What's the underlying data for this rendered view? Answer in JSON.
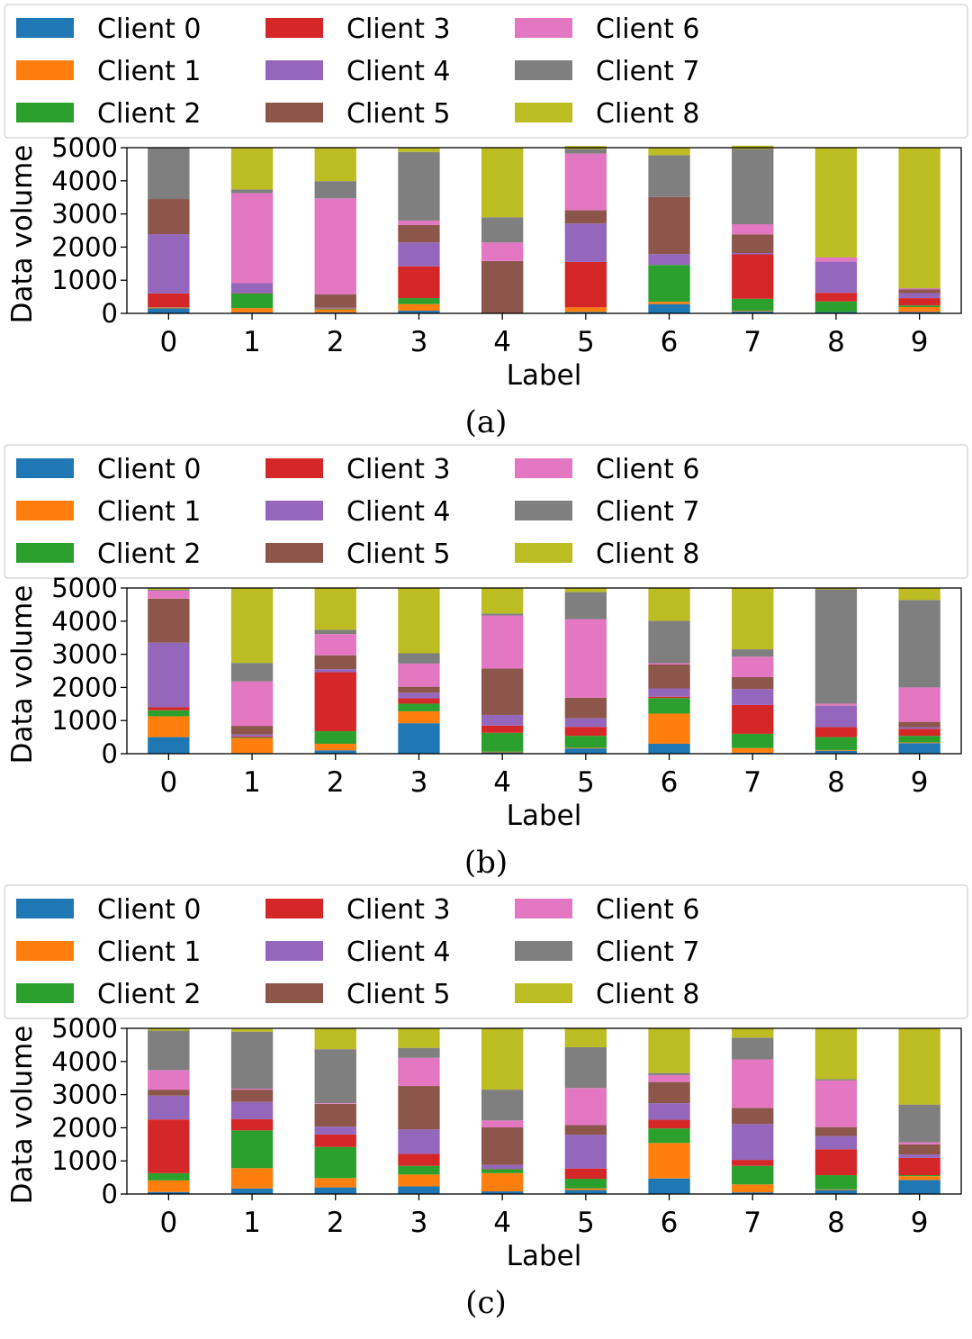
{
  "client_colors": [
    "#1f77b4",
    "#ff7f0e",
    "#2ca02c",
    "#d62728",
    "#9467bd",
    "#8c564b",
    "#e377c2",
    "#7f7f7f",
    "#bcbd22"
  ],
  "chart_data": [
    {
      "type": "bar",
      "stacked": true,
      "caption": "(a)",
      "xlabel": "Label",
      "ylabel": "Data volume",
      "ylim": [
        0,
        5000
      ],
      "yticks": [
        0,
        1000,
        2000,
        3000,
        4000,
        5000
      ],
      "legend_position": "top",
      "grid": false,
      "categories": [
        "0",
        "1",
        "2",
        "3",
        "4",
        "5",
        "6",
        "7",
        "8",
        "9"
      ],
      "series": [
        {
          "name": "Client 0",
          "values": [
            150,
            30,
            30,
            80,
            0,
            40,
            280,
            60,
            40,
            40
          ]
        },
        {
          "name": "Client 1",
          "values": [
            20,
            130,
            90,
            200,
            0,
            140,
            70,
            20,
            0,
            150
          ]
        },
        {
          "name": "Client 2",
          "values": [
            10,
            440,
            20,
            180,
            0,
            0,
            1110,
            360,
            320,
            50
          ]
        },
        {
          "name": "Client 3",
          "values": [
            420,
            10,
            10,
            960,
            0,
            1370,
            0,
            1340,
            260,
            220
          ]
        },
        {
          "name": "Client 4",
          "values": [
            1790,
            300,
            20,
            720,
            0,
            1160,
            330,
            40,
            940,
            150
          ]
        },
        {
          "name": "Client 5",
          "values": [
            1060,
            0,
            400,
            530,
            1580,
            400,
            1720,
            560,
            0,
            110
          ]
        },
        {
          "name": "Client 6",
          "values": [
            0,
            2720,
            2900,
            130,
            560,
            1710,
            0,
            310,
            130,
            30
          ]
        },
        {
          "name": "Client 7",
          "values": [
            1550,
            110,
            520,
            2070,
            760,
            140,
            1260,
            2270,
            0,
            10
          ]
        },
        {
          "name": "Client 8",
          "values": [
            0,
            1260,
            1010,
            130,
            2100,
            90,
            230,
            100,
            3310,
            4240
          ]
        }
      ]
    },
    {
      "type": "bar",
      "stacked": true,
      "caption": "(b)",
      "xlabel": "Label",
      "ylabel": "Data volume",
      "ylim": [
        0,
        5000
      ],
      "yticks": [
        0,
        1000,
        2000,
        3000,
        4000,
        5000
      ],
      "legend_position": "top",
      "grid": false,
      "categories": [
        "0",
        "1",
        "2",
        "3",
        "4",
        "5",
        "6",
        "7",
        "8",
        "9"
      ],
      "series": [
        {
          "name": "Client 0",
          "values": [
            500,
            20,
            100,
            920,
            40,
            160,
            300,
            30,
            90,
            320
          ]
        },
        {
          "name": "Client 1",
          "values": [
            630,
            450,
            200,
            360,
            20,
            20,
            910,
            140,
            20,
            20
          ]
        },
        {
          "name": "Client 2",
          "values": [
            180,
            20,
            380,
            230,
            570,
            360,
            470,
            430,
            390,
            200
          ]
        },
        {
          "name": "Client 3",
          "values": [
            90,
            30,
            1780,
            160,
            220,
            270,
            40,
            870,
            300,
            210
          ]
        },
        {
          "name": "Client 4",
          "values": [
            1950,
            60,
            90,
            170,
            320,
            260,
            250,
            480,
            650,
            50
          ]
        },
        {
          "name": "Client 5",
          "values": [
            1330,
            260,
            420,
            180,
            1400,
            620,
            720,
            360,
            10,
            160
          ]
        },
        {
          "name": "Client 6",
          "values": [
            240,
            1340,
            640,
            700,
            1600,
            2370,
            40,
            620,
            50,
            1040
          ]
        },
        {
          "name": "Client 7",
          "values": [
            30,
            560,
            130,
            310,
            60,
            820,
            1280,
            220,
            3450,
            2640
          ]
        },
        {
          "name": "Client 8",
          "values": [
            50,
            2260,
            1260,
            1970,
            770,
            130,
            990,
            1850,
            40,
            360
          ]
        }
      ]
    },
    {
      "type": "bar",
      "stacked": true,
      "caption": "(c)",
      "xlabel": "Label",
      "ylabel": "Data volume",
      "ylim": [
        0,
        5000
      ],
      "yticks": [
        0,
        1000,
        2000,
        3000,
        4000,
        5000
      ],
      "legend_position": "top",
      "grid": false,
      "categories": [
        "0",
        "1",
        "2",
        "3",
        "4",
        "5",
        "6",
        "7",
        "8",
        "9"
      ],
      "series": [
        {
          "name": "Client 0",
          "values": [
            60,
            170,
            200,
            230,
            80,
            120,
            470,
            50,
            120,
            420
          ]
        },
        {
          "name": "Client 1",
          "values": [
            350,
            610,
            280,
            360,
            550,
            50,
            1070,
            240,
            20,
            120
          ]
        },
        {
          "name": "Client 2",
          "values": [
            220,
            1140,
            940,
            260,
            120,
            290,
            440,
            560,
            430,
            30
          ]
        },
        {
          "name": "Client 3",
          "values": [
            1620,
            340,
            380,
            360,
            10,
            310,
            260,
            180,
            780,
            520
          ]
        },
        {
          "name": "Client 4",
          "values": [
            720,
            520,
            230,
            740,
            120,
            1020,
            500,
            1080,
            400,
            100
          ]
        },
        {
          "name": "Client 5",
          "values": [
            180,
            370,
            690,
            1310,
            1130,
            290,
            640,
            490,
            270,
            310
          ]
        },
        {
          "name": "Client 6",
          "values": [
            590,
            30,
            20,
            850,
            210,
            1120,
            210,
            1460,
            1410,
            60
          ]
        },
        {
          "name": "Client 7",
          "values": [
            1190,
            1720,
            1630,
            300,
            930,
            1230,
            60,
            660,
            40,
            1140
          ]
        },
        {
          "name": "Client 8",
          "values": [
            70,
            80,
            630,
            590,
            1850,
            570,
            1350,
            280,
            1530,
            2300
          ]
        }
      ]
    }
  ]
}
